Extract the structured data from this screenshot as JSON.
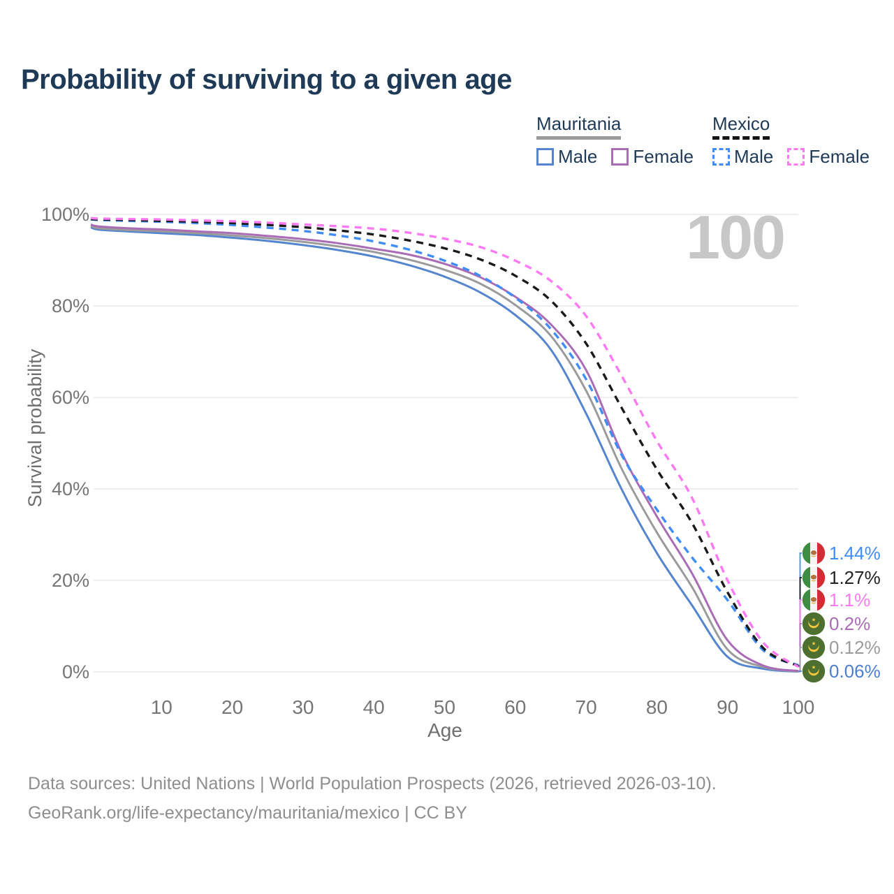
{
  "title": "Probability of surviving to a given age",
  "watermark": "100",
  "legend": {
    "groups": [
      {
        "country": "Mauritania",
        "line_style": "solid",
        "underline_color": "#9b9b9b",
        "items": [
          {
            "label": "Male",
            "color": "#5585cf"
          },
          {
            "label": "Female",
            "color": "#aa6cb5"
          }
        ]
      },
      {
        "country": "Mexico",
        "line_style": "dashed",
        "underline_color": "#141414",
        "items": [
          {
            "label": "Male",
            "color": "#3f8df5"
          },
          {
            "label": "Female",
            "color": "#fb7af2"
          }
        ]
      }
    ]
  },
  "chart_data": {
    "type": "line",
    "title": "Probability of surviving to a given age",
    "xlabel": "Age",
    "ylabel": "Survival probability",
    "xlim": [
      0,
      100
    ],
    "ylim": [
      0,
      100
    ],
    "x_ticks": [
      10,
      20,
      30,
      40,
      50,
      60,
      70,
      80,
      90,
      100
    ],
    "y_ticks": [
      0,
      20,
      40,
      60,
      80,
      100
    ],
    "y_tick_suffix": "%",
    "grid": "horizontal",
    "hover_age_label": "100",
    "ages": [
      0,
      1,
      5,
      10,
      15,
      20,
      25,
      30,
      35,
      40,
      45,
      50,
      55,
      60,
      65,
      70,
      75,
      80,
      85,
      90,
      95,
      100
    ],
    "series": [
      {
        "name": "Mauritania (Male)",
        "country": "Mauritania",
        "sex": "Male",
        "color": "#5585cf",
        "dashed": false,
        "flag": "mauritania",
        "end_label": "0.06%",
        "end_label_color": "#4d7fd0",
        "values": [
          97.2,
          96.7,
          96.3,
          95.9,
          95.5,
          94.9,
          94.2,
          93.3,
          92.2,
          90.8,
          88.9,
          86.4,
          83.0,
          78.0,
          70.5,
          56.5,
          40.0,
          26.0,
          14.5,
          3.3,
          0.7,
          0.06
        ]
      },
      {
        "name": "Mauritania",
        "country": "Mauritania",
        "sex": "All",
        "color": "#9b9b9b",
        "dashed": false,
        "flag": "mauritania",
        "end_label": "0.12%",
        "end_label_color": "#9b9b9b",
        "values": [
          97.5,
          97.0,
          96.6,
          96.3,
          95.9,
          95.4,
          94.8,
          94.0,
          93.0,
          91.8,
          90.1,
          87.9,
          84.9,
          80.2,
          73.5,
          61.5,
          44.5,
          30.5,
          18.5,
          4.9,
          1.1,
          0.12
        ]
      },
      {
        "name": "Mauritania (Female)",
        "country": "Mauritania",
        "sex": "Female",
        "color": "#aa6cb5",
        "dashed": false,
        "flag": "mauritania",
        "end_label": "0.2%",
        "end_label_color": "#aa6cb5",
        "values": [
          97.8,
          97.4,
          97.0,
          96.7,
          96.3,
          95.9,
          95.3,
          94.6,
          93.7,
          92.5,
          91.2,
          89.2,
          86.3,
          82.0,
          76.0,
          66.0,
          48.0,
          34.0,
          21.5,
          6.9,
          1.4,
          0.2
        ]
      },
      {
        "name": "Mexico (Male)",
        "country": "Mexico",
        "sex": "Male",
        "color": "#3f8df5",
        "dashed": true,
        "flag": "mexico",
        "end_label": "1.44%",
        "end_label_color": "#3f8df5",
        "values": [
          98.9,
          98.8,
          98.6,
          98.4,
          98.1,
          97.7,
          97.1,
          96.4,
          95.4,
          94.1,
          92.3,
          89.9,
          86.6,
          81.8,
          75.0,
          64.0,
          47.5,
          35.5,
          25.0,
          15.7,
          4.8,
          1.44
        ]
      },
      {
        "name": "Mexico",
        "country": "Mexico",
        "sex": "All",
        "color": "#1a1a1a",
        "dashed": true,
        "flag": "mexico",
        "end_label": "1.27%",
        "end_label_color": "#222222",
        "values": [
          99.0,
          98.9,
          98.8,
          98.6,
          98.4,
          98.1,
          97.7,
          97.2,
          96.5,
          95.6,
          94.3,
          92.6,
          90.2,
          86.6,
          81.2,
          71.8,
          57.8,
          44.3,
          32.5,
          17.4,
          5.3,
          1.27
        ]
      },
      {
        "name": "Mexico (Female)",
        "country": "Mexico",
        "sex": "Female",
        "color": "#fb7af2",
        "dashed": true,
        "flag": "mexico",
        "end_label": "1.1%",
        "end_label_color": "#fb7af2",
        "values": [
          99.2,
          99.1,
          99.0,
          98.9,
          98.7,
          98.5,
          98.2,
          97.8,
          97.4,
          96.9,
          96.0,
          94.7,
          92.9,
          89.9,
          85.5,
          77.8,
          64.8,
          50.5,
          38.0,
          20.0,
          6.5,
          1.1
        ]
      }
    ]
  },
  "footer": {
    "line1": "Data sources: United Nations | World Population Prospects (2026, retrieved 2026-03-10).",
    "line2": "GeoRank.org/life-expectancy/mauritania/mexico | CC BY"
  }
}
